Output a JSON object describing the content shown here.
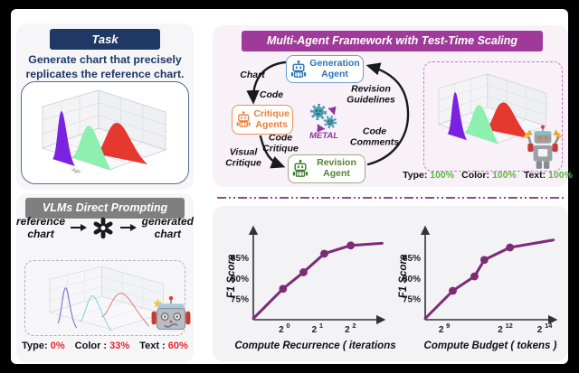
{
  "accent_colors": {
    "navy": "#1f3864",
    "header_gray": "#7f7f7f",
    "header_purple": "#a03a9a",
    "plot_purple": "#7d2b75",
    "metric_red": "#e9262b",
    "metric_green": "#5cb644",
    "agent_blue": "#2e74b5",
    "agent_orange": "#ed7d31",
    "agent_green": "#538135",
    "ridge_purple": "#7a22e0",
    "ridge_green": "#8df0ae",
    "ridge_red": "#e5392f"
  },
  "task_panel": {
    "header": "Task",
    "description": [
      "Generate chart that precisely",
      "replicates the reference chart."
    ],
    "reference_chart_xlabel": "Age"
  },
  "vlm_panel": {
    "header": "VLMs Direct Prompting",
    "input_label": [
      "reference",
      "chart"
    ],
    "output_label": [
      "generated",
      "chart"
    ],
    "model_icon": "openai-logo",
    "metrics": [
      {
        "label": "Type:",
        "value": "0%"
      },
      {
        "label": "Color :",
        "value": "33%"
      },
      {
        "label": "Text :",
        "value": "60%"
      }
    ]
  },
  "framework_panel": {
    "header": "Multi-Agent Framework with Test-Time Scaling",
    "agents": {
      "generation": [
        "Generation",
        "Agent"
      ],
      "critique": [
        "Critique",
        "Agents"
      ],
      "revision": [
        "Revision",
        "Agent"
      ]
    },
    "center_label": "METAL",
    "edge_labels": {
      "chart": "Chart",
      "code": "Code",
      "revision_guidelines": [
        "Revision",
        "Guidelines"
      ],
      "code_comments": [
        "Code",
        "Comments"
      ],
      "code_critique": [
        "Code",
        "Critique"
      ],
      "visual_critique": [
        "Visual",
        "Critique"
      ]
    },
    "metrics": [
      {
        "label": "Type:",
        "value": "100%"
      },
      {
        "label": "Color:",
        "value": "100%"
      },
      {
        "label": "Text:",
        "value": "100%"
      }
    ]
  },
  "chart_data": [
    {
      "type": "line",
      "xlabel": "Compute Recurrence ( iterations )",
      "ylabel": "F1 Score",
      "x_scale": "log2",
      "x_range": [
        -0.9,
        3.1
      ],
      "y_range": [
        70,
        91
      ],
      "xticks": [
        {
          "v": 0,
          "b": "2",
          "e": "0"
        },
        {
          "v": 1,
          "b": "2",
          "e": "1"
        },
        {
          "v": 2,
          "b": "2",
          "e": "2"
        }
      ],
      "yticks": [
        {
          "v": 75,
          "label": "75%"
        },
        {
          "v": 80,
          "label": "80%"
        },
        {
          "v": 85,
          "label": "85%"
        }
      ],
      "line": {
        "x": [
          -0.9,
          0,
          0.62,
          1.25,
          2.05,
          3.0
        ],
        "y": [
          70.3,
          77.5,
          81.5,
          86,
          88,
          88.5
        ]
      },
      "markers": {
        "x": [
          0,
          0.62,
          1.25,
          2.05
        ],
        "y": [
          77.5,
          81.5,
          86,
          88
        ]
      }
    },
    {
      "type": "line",
      "xlabel": "Compute Budget ( tokens )",
      "ylabel": "F1 Score",
      "x_scale": "log2",
      "x_range": [
        8.1,
        14.8
      ],
      "y_range": [
        70,
        91
      ],
      "xticks": [
        {
          "v": 9,
          "b": "2",
          "e": "9"
        },
        {
          "v": 12,
          "b": "2",
          "e": "12"
        },
        {
          "v": 14,
          "b": "2",
          "e": "14"
        }
      ],
      "yticks": [
        {
          "v": 75,
          "label": "75%"
        },
        {
          "v": 80,
          "label": "80%"
        },
        {
          "v": 85,
          "label": "85%"
        }
      ],
      "line": {
        "x": [
          8.1,
          9.5,
          10.6,
          11.1,
          12.4,
          14.6
        ],
        "y": [
          70.3,
          77,
          80.5,
          84.5,
          87.5,
          89.3
        ]
      },
      "markers": {
        "x": [
          9.5,
          10.6,
          11.1,
          12.4
        ],
        "y": [
          77,
          80.5,
          84.5,
          87.5
        ]
      }
    }
  ]
}
